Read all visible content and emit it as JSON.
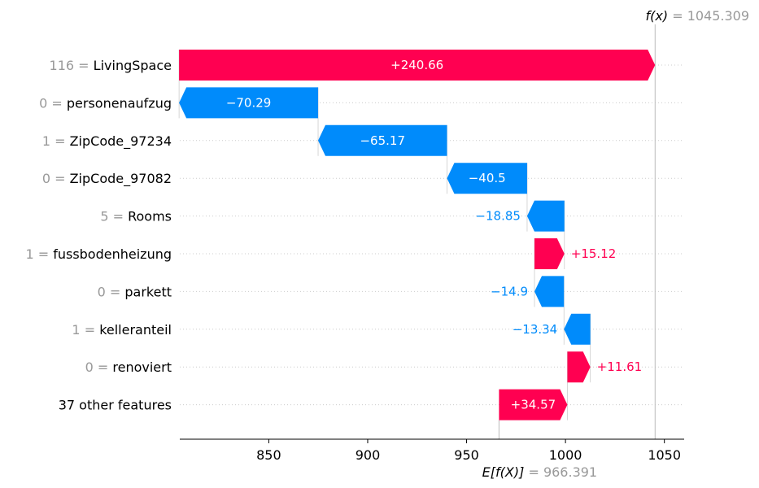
{
  "chart_data": {
    "type": "waterfall",
    "base_value": 966.391,
    "base_value_label": "966.391",
    "output_value": 1045.309,
    "output_value_label": "1045.309",
    "fx_symbol": "f(x)",
    "efx_symbol": "E[f(X)]",
    "xlim": [
      805,
      1060
    ],
    "xticks": [
      850,
      900,
      950,
      1000,
      1050
    ],
    "features": [
      {
        "value": "116",
        "name": "LivingSpace",
        "contribution": 240.66,
        "label": "+240.66"
      },
      {
        "value": "0",
        "name": "personenaufzug",
        "contribution": -70.29,
        "label": "−70.29"
      },
      {
        "value": "1",
        "name": "ZipCode_97234",
        "contribution": -65.17,
        "label": "−65.17"
      },
      {
        "value": "0",
        "name": "ZipCode_97082",
        "contribution": -40.5,
        "label": "−40.5"
      },
      {
        "value": "5",
        "name": "Rooms",
        "contribution": -18.85,
        "label": "−18.85"
      },
      {
        "value": "1",
        "name": "fussbodenheizung",
        "contribution": 15.12,
        "label": "+15.12"
      },
      {
        "value": "0",
        "name": "parkett",
        "contribution": -14.9,
        "label": "−14.9"
      },
      {
        "value": "1",
        "name": "kelleranteil",
        "contribution": -13.34,
        "label": "−13.34"
      },
      {
        "value": "0",
        "name": "renoviert",
        "contribution": 11.61,
        "label": "+11.61"
      },
      {
        "value": "",
        "name": "37 other features",
        "contribution": 34.57,
        "label": "+34.57"
      }
    ],
    "colors": {
      "positive": "#ff0051",
      "negative": "#008bfb",
      "muted": "#999999",
      "grid": "#cccccc"
    }
  }
}
